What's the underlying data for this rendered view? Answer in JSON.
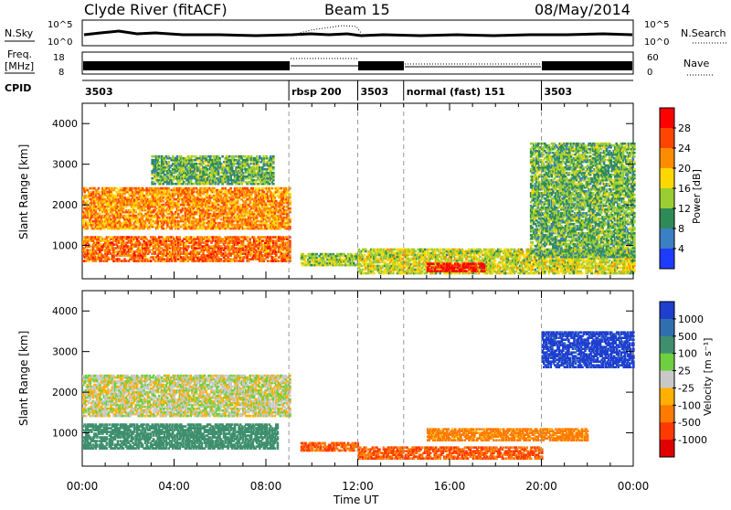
{
  "header": {
    "station": "Clyde River (fitACF)",
    "beam": "Beam 15",
    "date": "08/May/2014"
  },
  "nsky_panel": {
    "label": "N.Sky",
    "y_ticks": [
      "10^5",
      "10^0"
    ],
    "right_label": "N.Search",
    "right_ticks": [
      "10^5",
      "10^0"
    ]
  },
  "freq_panel": {
    "label": "Freq.",
    "unit": "[MHz]",
    "y_ticks": [
      "18",
      "8"
    ],
    "right_label": "Nave",
    "right_ticks": [
      "60",
      "0"
    ]
  },
  "cpid_panel": {
    "label": "CPID",
    "segments": [
      {
        "start": 0,
        "end": 9,
        "text": "3503"
      },
      {
        "start": 9,
        "end": 12,
        "text": "rbsp 200"
      },
      {
        "start": 12,
        "end": 14,
        "text": "3503"
      },
      {
        "start": 14,
        "end": 20,
        "text": "normal (fast) 151"
      },
      {
        "start": 20,
        "end": 24,
        "text": "3503"
      }
    ]
  },
  "power_colorbar": {
    "label": "Power [dB]",
    "ticks": [
      "28",
      "24",
      "20",
      "16",
      "12",
      "8",
      "4"
    ],
    "colors": [
      "#ff0000",
      "#ff4500",
      "#ff8c00",
      "#ffd700",
      "#9acd32",
      "#2e8b57",
      "#3b7fc4",
      "#1e3cff"
    ]
  },
  "velocity_colorbar": {
    "label": "Velocity [m s⁻¹]",
    "ticks": [
      "1000",
      "500",
      "100",
      "25",
      "-25",
      "-100",
      "-500",
      "-1000"
    ],
    "colors": [
      "#1f3fd0",
      "#2f6fb0",
      "#3f8f6f",
      "#6fcf3f",
      "#c8c8c8",
      "#ffb000",
      "#ff7a00",
      "#ff3a00",
      "#e00000"
    ]
  },
  "axes": {
    "ylabel": "Slant Range [km]",
    "xlabel": "Time UT",
    "x_tick_labels": [
      "00:00",
      "04:00",
      "08:00",
      "12:00",
      "16:00",
      "20:00",
      "00:00"
    ],
    "y_tick_labels": [
      "1000",
      "2000",
      "3000",
      "4000"
    ]
  },
  "chart_data": {
    "type": "heatmap",
    "x_range_hours": [
      0,
      24
    ],
    "y_range_km": [
      180,
      4500
    ],
    "dashed_time_markers_hours": [
      9,
      12,
      14,
      20
    ],
    "power_echo_regions": [
      {
        "t0": 0.0,
        "t1": 9.0,
        "r0": 600,
        "r1": 1200,
        "power_db": 22
      },
      {
        "t0": 0.0,
        "t1": 9.0,
        "r0": 1400,
        "r1": 2400,
        "power_db": 20
      },
      {
        "t0": 3.0,
        "t1": 8.3,
        "r0": 2500,
        "r1": 3200,
        "power_db": 10
      },
      {
        "t0": 9.5,
        "t1": 12.0,
        "r0": 500,
        "r1": 800,
        "power_db": 12
      },
      {
        "t0": 12.0,
        "t1": 24.0,
        "r0": 300,
        "r1": 900,
        "power_db": 14
      },
      {
        "t0": 15.0,
        "t1": 17.5,
        "r0": 350,
        "r1": 550,
        "power_db": 28
      },
      {
        "t0": 19.5,
        "t1": 24.0,
        "r0": 700,
        "r1": 3500,
        "power_db": 10
      }
    ],
    "velocity_echo_regions": [
      {
        "t0": 0.0,
        "t1": 9.0,
        "r0": 1400,
        "r1": 2400,
        "velocity": 0
      },
      {
        "t0": 0.0,
        "t1": 8.5,
        "r0": 600,
        "r1": 1200,
        "velocity": 150
      },
      {
        "t0": 9.5,
        "t1": 12.0,
        "r0": 550,
        "r1": 750,
        "velocity": -300
      },
      {
        "t0": 12.0,
        "t1": 20.0,
        "r0": 350,
        "r1": 650,
        "velocity": -300
      },
      {
        "t0": 15.0,
        "t1": 22.0,
        "r0": 800,
        "r1": 1100,
        "velocity": -100
      },
      {
        "t0": 20.0,
        "t1": 24.0,
        "r0": 2600,
        "r1": 3500,
        "velocity": 800
      }
    ]
  }
}
